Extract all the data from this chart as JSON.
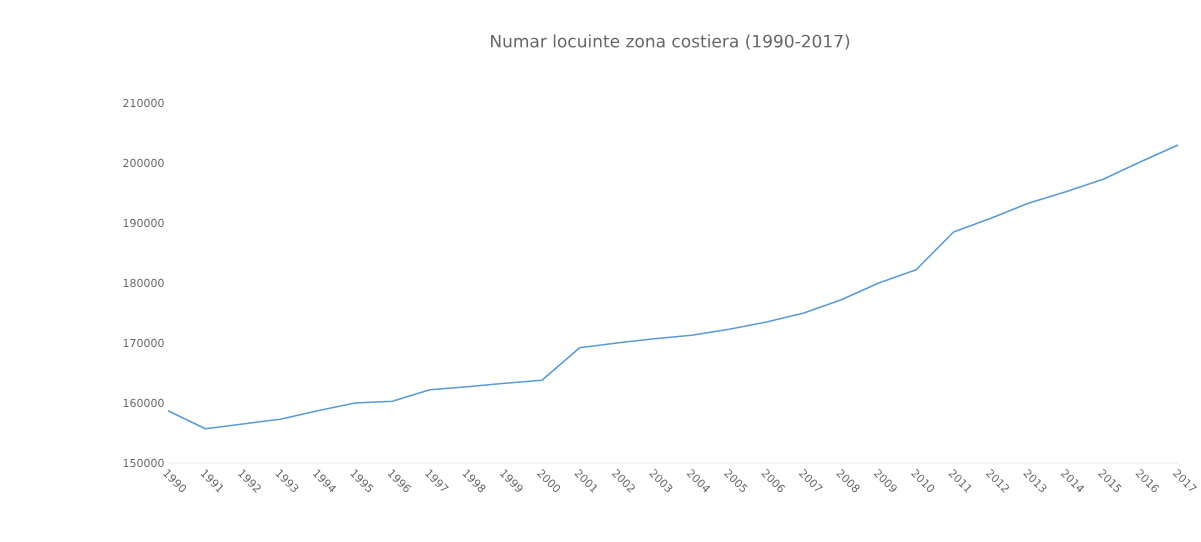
{
  "chart_data": {
    "type": "line",
    "title": "Numar locuinte zona costiera (1990-2017)",
    "categories": [
      "1990",
      "1991",
      "1992",
      "1993",
      "1994",
      "1995",
      "1996",
      "1997",
      "1998",
      "1999",
      "2000",
      "2001",
      "2002",
      "2003",
      "2004",
      "2005",
      "2006",
      "2007",
      "2008",
      "2009",
      "2010",
      "2011",
      "2012",
      "2013",
      "2014",
      "2015",
      "2016",
      "2017"
    ],
    "series": [
      {
        "color": "#5b9bd5",
        "values": [
          158700,
          155700,
          156500,
          157300,
          158700,
          160000,
          160300,
          162200,
          162700,
          163300,
          163800,
          169200,
          170000,
          170700,
          171300,
          172300,
          173500,
          175000,
          177200,
          180000,
          182200,
          188500,
          190800,
          193300,
          195200,
          197300,
          200200,
          203000
        ]
      }
    ],
    "ylim": [
      150000,
      210000
    ],
    "yticks": [
      150000,
      160000,
      170000,
      180000,
      190000,
      200000,
      210000
    ],
    "grid": false,
    "marker": "none",
    "line_style": "solid"
  }
}
